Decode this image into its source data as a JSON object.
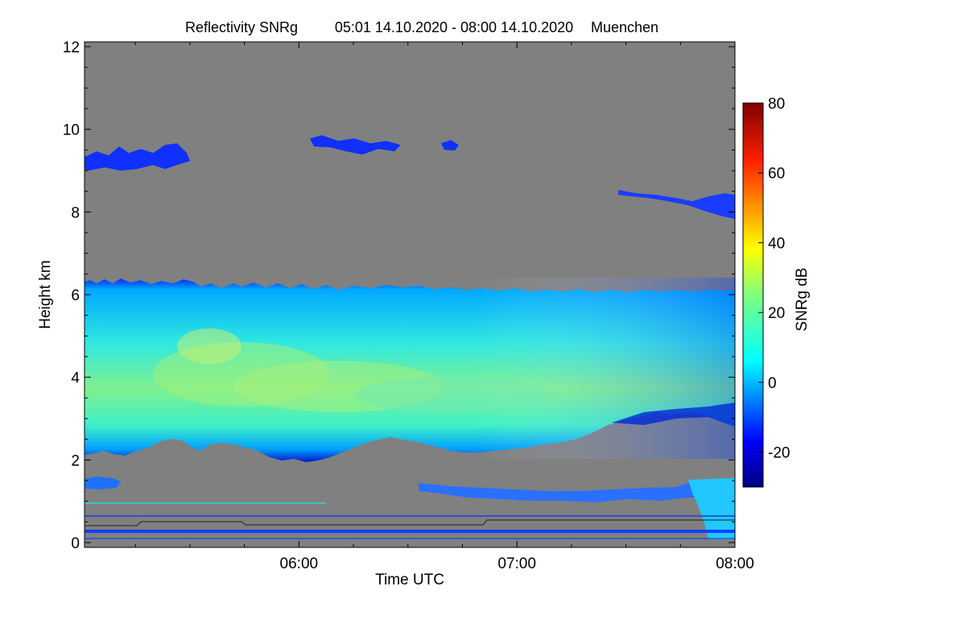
{
  "chart_data": {
    "type": "heatmap",
    "title": "Reflectivity SNRg",
    "time_range": "05:01 14.10.2020 - 08:00 14.10.2020",
    "location": "Muenchen",
    "xlabel": "Time UTC",
    "ylabel": "Height km",
    "x_range_hours": [
      5.0167,
      8.0
    ],
    "ylim": [
      0,
      12
    ],
    "x_ticks": [
      {
        "value": 6.0,
        "label": "06:00"
      },
      {
        "value": 7.0,
        "label": "07:00"
      },
      {
        "value": 8.0,
        "label": "08:00"
      }
    ],
    "y_ticks": [
      {
        "value": 0,
        "label": "0"
      },
      {
        "value": 2,
        "label": "2"
      },
      {
        "value": 4,
        "label": "4"
      },
      {
        "value": 6,
        "label": "6"
      },
      {
        "value": 8,
        "label": "8"
      },
      {
        "value": 10,
        "label": "10"
      },
      {
        "value": 12,
        "label": "12"
      }
    ],
    "colorbar": {
      "label": "SNRg dB",
      "range": [
        -30,
        80
      ],
      "ticks": [
        {
          "value": -20,
          "label": "-20"
        },
        {
          "value": 0,
          "label": "0"
        },
        {
          "value": 20,
          "label": "20"
        },
        {
          "value": 40,
          "label": "40"
        },
        {
          "value": 60,
          "label": "60"
        },
        {
          "value": 80,
          "label": "80"
        }
      ]
    },
    "background_color": "#808080",
    "features": [
      {
        "name": "main-cloud-layer",
        "time_start": 5.0167,
        "time_end": 8.0,
        "base_km_start": 2.3,
        "base_km_end": 2.9,
        "top_km": 6.2,
        "snr_peak_db": 30
      },
      {
        "name": "cirrus-patches",
        "time_start": 5.02,
        "time_end": 5.55,
        "height_km": [
          9.0,
          9.7
        ]
      },
      {
        "name": "cirrus-patches-mid",
        "time_start": 6.1,
        "time_end": 6.75,
        "height_km": [
          9.3,
          9.8
        ]
      },
      {
        "name": "high-layer-late",
        "time_start": 7.5,
        "time_end": 8.0,
        "height_km": [
          7.8,
          8.5
        ]
      },
      {
        "name": "low-echoes-late",
        "time_start": 6.55,
        "time_end": 8.0,
        "height_km": [
          0.6,
          1.5
        ]
      },
      {
        "name": "near-ground-clutter",
        "time_start": 5.0167,
        "time_end": 8.0,
        "height_km": [
          0.1,
          0.5
        ]
      }
    ]
  }
}
